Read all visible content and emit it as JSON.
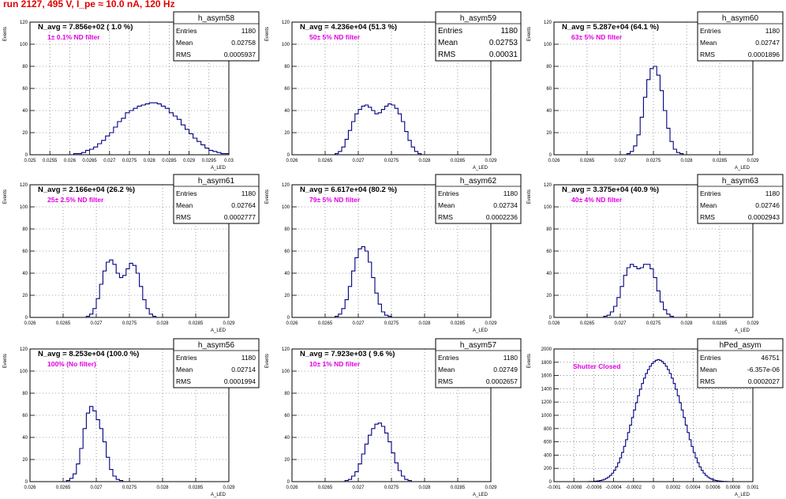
{
  "header": {
    "run_title": "run 2127,   495 V, I_pe ≈ 10.0 nA, 120 Hz"
  },
  "chart_data": [
    {
      "type": "histogram",
      "name": "h_asym58",
      "stats": {
        "Entries": "1180",
        "Mean": "0.02758",
        "RMS": "0.0005937"
      },
      "navg": "N_avg = 7.856e+02 ( 1.0 %)",
      "filter": "1± 0.1% ND filter",
      "xrange": [
        0.025,
        0.03
      ],
      "ylim": [
        0,
        120
      ],
      "yticks": [
        0,
        20,
        40,
        60,
        80,
        100,
        120
      ],
      "xticks": [
        "0.025",
        "0.0255",
        "0.026",
        "0.0265",
        "0.027",
        "0.0275",
        "0.028",
        "0.0285",
        "0.029",
        "0.0295",
        "0.03"
      ],
      "ylabel": "Events",
      "xlabel": "A_LED",
      "bin_width": 0.0001,
      "values": [
        0,
        0,
        0,
        0,
        0,
        0,
        0,
        0,
        0,
        0,
        0,
        1,
        1,
        2,
        4,
        5,
        7,
        10,
        13,
        17,
        20,
        25,
        30,
        33,
        38,
        40,
        42,
        44,
        45,
        46,
        47,
        47,
        46,
        44,
        42,
        38,
        35,
        32,
        27,
        23,
        19,
        15,
        12,
        9,
        6,
        4,
        3,
        2,
        1,
        1
      ]
    },
    {
      "type": "histogram",
      "name": "h_asym59",
      "stats": {
        "Entries": "1180",
        "Mean": "0.02753",
        "RMS": "0.00031"
      },
      "navg": "N_avg = 4.236e+04 (51.3 %)",
      "filter": "50± 5% ND filter",
      "xrange": [
        0.026,
        0.029
      ],
      "ylim": [
        0,
        120
      ],
      "yticks": [
        0,
        20,
        40,
        60,
        80,
        100,
        120
      ],
      "xticks": [
        "0.026",
        "0.0265",
        "0.027",
        "0.0275",
        "0.028",
        "0.0285",
        "0.029"
      ],
      "ylabel": "Events",
      "xlabel": "A_LED",
      "bin_width": 5e-05,
      "values": [
        0,
        0,
        0,
        0,
        0,
        0,
        0,
        0,
        0,
        0,
        0,
        0,
        0,
        1,
        3,
        7,
        14,
        22,
        30,
        37,
        41,
        44,
        45,
        43,
        40,
        37,
        38,
        41,
        44,
        46,
        45,
        42,
        37,
        30,
        21,
        13,
        7,
        3,
        1,
        0,
        0,
        0,
        0,
        0,
        0,
        0,
        0,
        0,
        0,
        0,
        0,
        0,
        0,
        0,
        0,
        0,
        0,
        0,
        0,
        0
      ]
    },
    {
      "type": "histogram",
      "name": "h_asym60",
      "stats": {
        "Entries": "1180",
        "Mean": "0.02747",
        "RMS": "0.0001896"
      },
      "navg": "N_avg = 5.287e+04 (64.1 %)",
      "filter": "63± 5% ND filter",
      "xrange": [
        0.026,
        0.029
      ],
      "ylim": [
        0,
        120
      ],
      "yticks": [
        0,
        20,
        40,
        60,
        80,
        100,
        120
      ],
      "xticks": [
        "0.026",
        "0.0265",
        "0.027",
        "0.0275",
        "0.028",
        "0.0285",
        "0.029"
      ],
      "ylabel": "Events",
      "xlabel": "A_LED",
      "bin_width": 5e-05,
      "values": [
        0,
        0,
        0,
        0,
        0,
        0,
        0,
        0,
        0,
        0,
        0,
        0,
        0,
        0,
        0,
        0,
        0,
        0,
        0,
        0,
        0,
        0,
        1,
        3,
        8,
        18,
        34,
        52,
        68,
        78,
        80,
        72,
        58,
        40,
        24,
        12,
        5,
        2,
        1,
        0,
        0,
        0,
        0,
        0,
        0,
        0,
        0,
        0,
        0,
        0,
        0,
        0,
        0,
        0,
        0,
        0,
        0,
        0,
        0,
        0
      ]
    },
    {
      "type": "histogram",
      "name": "h_asym61",
      "stats": {
        "Entries": "1180",
        "Mean": "0.02764",
        "RMS": "0.0002777"
      },
      "navg": "N_avg = 2.166e+04 (26.2 %)",
      "filter": "25± 2.5% ND filter",
      "xrange": [
        0.026,
        0.029
      ],
      "ylim": [
        0,
        120
      ],
      "yticks": [
        0,
        20,
        40,
        60,
        80,
        100,
        120
      ],
      "xticks": [
        "0.026",
        "0.0265",
        "0.027",
        "0.0275",
        "0.028",
        "0.0285",
        "0.029"
      ],
      "ylabel": "Events",
      "xlabel": "A_LED",
      "bin_width": 5e-05,
      "values": [
        0,
        0,
        0,
        0,
        0,
        0,
        0,
        0,
        0,
        0,
        0,
        0,
        0,
        0,
        0,
        0,
        0,
        1,
        3,
        8,
        17,
        30,
        42,
        50,
        52,
        48,
        40,
        36,
        38,
        44,
        49,
        47,
        40,
        28,
        16,
        8,
        3,
        1,
        0,
        0,
        0,
        0,
        0,
        0,
        0,
        0,
        0,
        0,
        0,
        0,
        0,
        0,
        0,
        0,
        0,
        0,
        0,
        0,
        0,
        0
      ]
    },
    {
      "type": "histogram",
      "name": "h_asym62",
      "stats": {
        "Entries": "1180",
        "Mean": "0.02734",
        "RMS": "0.0002236"
      },
      "navg": "N_avg = 6.617e+04 (80.2 %)",
      "filter": "79± 5% ND filter",
      "xrange": [
        0.026,
        0.029
      ],
      "ylim": [
        0,
        120
      ],
      "yticks": [
        0,
        20,
        40,
        60,
        80,
        100,
        120
      ],
      "xticks": [
        "0.026",
        "0.0265",
        "0.027",
        "0.0275",
        "0.028",
        "0.0285",
        "0.029"
      ],
      "ylabel": "Events",
      "xlabel": "A_LED",
      "bin_width": 5e-05,
      "values": [
        0,
        0,
        0,
        0,
        0,
        0,
        0,
        0,
        0,
        0,
        0,
        0,
        0,
        1,
        3,
        8,
        16,
        28,
        42,
        54,
        62,
        64,
        60,
        50,
        36,
        22,
        12,
        5,
        2,
        1,
        0,
        0,
        0,
        0,
        0,
        0,
        0,
        0,
        0,
        0,
        0,
        0,
        0,
        0,
        0,
        0,
        0,
        0,
        0,
        0,
        0,
        0,
        0,
        0,
        0,
        0,
        0,
        0,
        0,
        0
      ]
    },
    {
      "type": "histogram",
      "name": "h_asym63",
      "stats": {
        "Entries": "1180",
        "Mean": "0.02746",
        "RMS": "0.0002943"
      },
      "navg": "N_avg = 3.375e+04 (40.9 %)",
      "filter": "40± 4% ND filter",
      "xrange": [
        0.026,
        0.029
      ],
      "ylim": [
        0,
        120
      ],
      "yticks": [
        0,
        20,
        40,
        60,
        80,
        100,
        120
      ],
      "xticks": [
        "0.026",
        "0.0265",
        "0.027",
        "0.0275",
        "0.028",
        "0.0285",
        "0.029"
      ],
      "ylabel": "Events",
      "xlabel": "A_LED",
      "bin_width": 5e-05,
      "values": [
        0,
        0,
        0,
        0,
        0,
        0,
        0,
        0,
        0,
        0,
        0,
        0,
        0,
        0,
        0,
        1,
        2,
        5,
        10,
        18,
        28,
        38,
        45,
        48,
        46,
        44,
        45,
        48,
        48,
        44,
        36,
        24,
        14,
        7,
        3,
        1,
        0,
        0,
        0,
        0,
        0,
        0,
        0,
        0,
        0,
        0,
        0,
        0,
        0,
        0,
        0,
        0,
        0,
        0,
        0,
        0,
        0,
        0,
        0,
        0
      ]
    },
    {
      "type": "histogram",
      "name": "h_asym56",
      "stats": {
        "Entries": "1180",
        "Mean": "0.02714",
        "RMS": "0.0001994"
      },
      "navg": "N_avg = 8.253e+04 (100.0 %)",
      "filter": "100% (No filter)",
      "xrange": [
        0.026,
        0.029
      ],
      "ylim": [
        0,
        120
      ],
      "yticks": [
        0,
        20,
        40,
        60,
        80,
        100,
        120
      ],
      "xticks": [
        "0.026",
        "0.0265",
        "0.027",
        "0.0275",
        "0.028",
        "0.0285",
        "0.029"
      ],
      "ylabel": "Events",
      "xlabel": "A_LED",
      "bin_width": 5e-05,
      "values": [
        0,
        0,
        0,
        0,
        0,
        0,
        0,
        0,
        0,
        0,
        0,
        1,
        3,
        7,
        16,
        30,
        48,
        62,
        68,
        64,
        56,
        48,
        36,
        22,
        11,
        5,
        2,
        1,
        0,
        0,
        0,
        0,
        0,
        0,
        0,
        0,
        0,
        0,
        0,
        0,
        0,
        0,
        0,
        0,
        0,
        0,
        0,
        0,
        0,
        0,
        0,
        0,
        0,
        0,
        0,
        0,
        0,
        0,
        0,
        0
      ]
    },
    {
      "type": "histogram",
      "name": "h_asym57",
      "stats": {
        "Entries": "1180",
        "Mean": "0.02749",
        "RMS": "0.0002657"
      },
      "navg": "N_avg = 7.923e+03 ( 9.6 %)",
      "filter": "10± 1% ND filter",
      "xrange": [
        0.026,
        0.029
      ],
      "ylim": [
        0,
        120
      ],
      "yticks": [
        0,
        20,
        40,
        60,
        80,
        100,
        120
      ],
      "xticks": [
        "0.026",
        "0.0265",
        "0.027",
        "0.0275",
        "0.028",
        "0.0285",
        "0.029"
      ],
      "ylabel": "Events",
      "xlabel": "A_LED",
      "bin_width": 5e-05,
      "values": [
        0,
        0,
        0,
        0,
        0,
        0,
        0,
        0,
        0,
        0,
        0,
        0,
        0,
        0,
        0,
        0,
        1,
        2,
        5,
        9,
        16,
        25,
        34,
        42,
        48,
        52,
        53,
        50,
        44,
        36,
        26,
        17,
        10,
        5,
        2,
        1,
        0,
        0,
        0,
        0,
        0,
        0,
        0,
        0,
        0,
        0,
        0,
        0,
        0,
        0,
        0,
        0,
        0,
        0,
        0,
        0,
        0,
        0,
        0,
        0
      ]
    },
    {
      "type": "histogram",
      "name": "hPed_asym",
      "stats": {
        "Entries": "46751",
        "Mean": "-6.357e-06",
        "RMS": "0.0002027"
      },
      "navg": "",
      "filter": "Shutter Closed",
      "xrange": [
        -0.001,
        0.001
      ],
      "ylim": [
        0,
        2000
      ],
      "yticks": [
        0,
        200,
        400,
        600,
        800,
        1000,
        1200,
        1400,
        1600,
        1800,
        2000
      ],
      "xticks": [
        "-0.001",
        "-0.0008",
        "-0.0006",
        "-0.0004",
        "-0.0002",
        "0",
        "0.0002",
        "0.0004",
        "0.0006",
        "0.0008",
        "0.001"
      ],
      "ylabel": "Events",
      "xlabel": "A_LED",
      "bin_width": 2e-05,
      "values": [
        0,
        0,
        0,
        0,
        0,
        0,
        0,
        0,
        0,
        0,
        0,
        0,
        0,
        0,
        0,
        0,
        0,
        1,
        2,
        3,
        5,
        8,
        12,
        17,
        25,
        35,
        50,
        70,
        95,
        128,
        170,
        222,
        285,
        358,
        440,
        532,
        632,
        740,
        852,
        966,
        1080,
        1190,
        1295,
        1392,
        1480,
        1560,
        1630,
        1690,
        1740,
        1780,
        1810,
        1830,
        1840,
        1830,
        1810,
        1780,
        1740,
        1690,
        1630,
        1560,
        1480,
        1392,
        1295,
        1190,
        1080,
        966,
        852,
        740,
        632,
        532,
        440,
        358,
        285,
        222,
        170,
        128,
        95,
        70,
        50,
        35,
        25,
        17,
        12,
        8,
        5,
        3,
        2,
        1,
        0,
        0,
        0,
        0,
        0,
        0,
        0,
        0,
        0,
        0,
        0,
        0
      ]
    }
  ]
}
